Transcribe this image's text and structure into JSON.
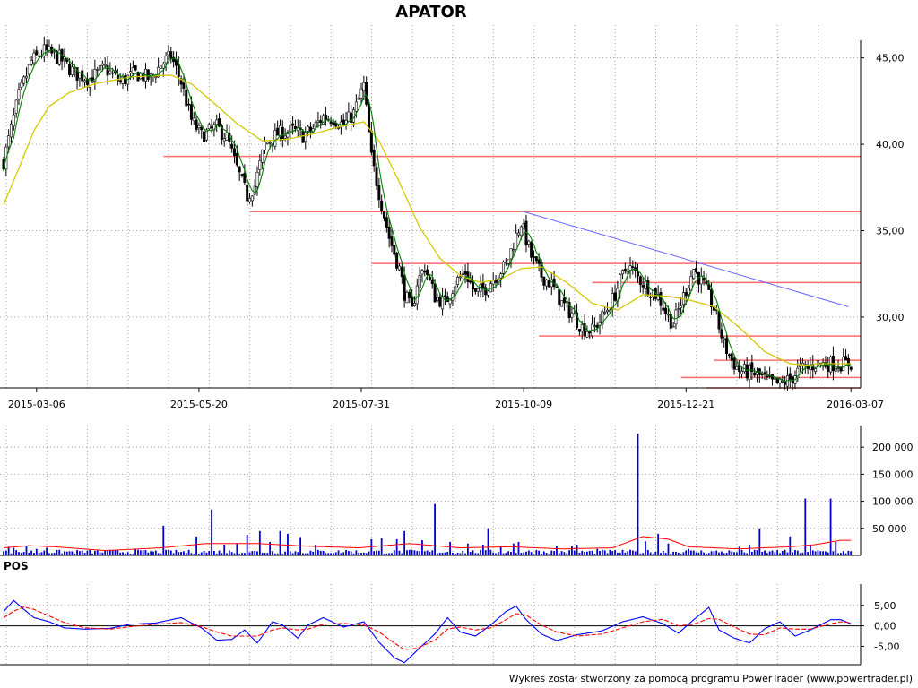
{
  "chart_data": [
    {
      "type": "candlestick",
      "title": "APATOR",
      "x_tick_labels": [
        "2015-03-06",
        "2015-05-20",
        "2015-07-31",
        "2015-10-09",
        "2015-12-21",
        "2016-03-07"
      ],
      "y_tick_labels": [
        "45,00",
        "40,00",
        "35,00",
        "30,00"
      ],
      "y_ticks": [
        45,
        40,
        35,
        30
      ],
      "ylim": [
        25.9,
        46.9
      ],
      "grid": true,
      "price_profile": [
        [
          0,
          39.0
        ],
        [
          6,
          42.8
        ],
        [
          11,
          44.8
        ],
        [
          16,
          45.4
        ],
        [
          22,
          45.0
        ],
        [
          28,
          44.1
        ],
        [
          34,
          43.8
        ],
        [
          40,
          44.4
        ],
        [
          46,
          43.6
        ],
        [
          52,
          44.1
        ],
        [
          58,
          43.8
        ],
        [
          62,
          44.6
        ],
        [
          66,
          45.1
        ],
        [
          70,
          43.6
        ],
        [
          74,
          41.4
        ],
        [
          78,
          40.5
        ],
        [
          84,
          41.0
        ],
        [
          88,
          40.4
        ],
        [
          92,
          38.6
        ],
        [
          96,
          37.0
        ],
        [
          99,
          37.6
        ],
        [
          103,
          40.0
        ],
        [
          108,
          40.6
        ],
        [
          114,
          40.8
        ],
        [
          118,
          40.5
        ],
        [
          122,
          40.9
        ],
        [
          126,
          41.6
        ],
        [
          130,
          41.5
        ],
        [
          134,
          41.1
        ],
        [
          138,
          41.8
        ],
        [
          142,
          43.4
        ],
        [
          145,
          39.2
        ],
        [
          148,
          37.2
        ],
        [
          152,
          34.6
        ],
        [
          156,
          32.8
        ],
        [
          158,
          31.4
        ],
        [
          161,
          30.3
        ],
        [
          163,
          32.0
        ],
        [
          166,
          32.9
        ],
        [
          170,
          31.2
        ],
        [
          174,
          30.8
        ],
        [
          178,
          32.0
        ],
        [
          182,
          32.6
        ],
        [
          186,
          31.3
        ],
        [
          190,
          31.7
        ],
        [
          194,
          32.4
        ],
        [
          198,
          33.0
        ],
        [
          202,
          34.7
        ],
        [
          204,
          35.5
        ],
        [
          208,
          33.5
        ],
        [
          212,
          32.4
        ],
        [
          216,
          31.9
        ],
        [
          220,
          30.8
        ],
        [
          224,
          30.2
        ],
        [
          228,
          29.4
        ],
        [
          232,
          29.2
        ],
        [
          236,
          30.0
        ],
        [
          240,
          31.0
        ],
        [
          244,
          32.4
        ],
        [
          246,
          33.0
        ],
        [
          250,
          32.3
        ],
        [
          254,
          31.7
        ],
        [
          258,
          31.2
        ],
        [
          262,
          30.0
        ],
        [
          264,
          29.6
        ],
        [
          268,
          31.2
        ],
        [
          272,
          32.8
        ],
        [
          276,
          31.8
        ],
        [
          280,
          30.5
        ],
        [
          284,
          28.4
        ],
        [
          287,
          27.5
        ],
        [
          290,
          26.9
        ],
        [
          294,
          26.8
        ],
        [
          298,
          26.6
        ],
        [
          302,
          26.2
        ],
        [
          306,
          26.1
        ],
        [
          310,
          26.4
        ],
        [
          314,
          27.0
        ],
        [
          317,
          27.0
        ],
        [
          320,
          27.3
        ]
      ],
      "sma_profile": [
        [
          0,
          36.5
        ],
        [
          6,
          38.6
        ],
        [
          12,
          40.8
        ],
        [
          18,
          42.2
        ],
        [
          26,
          43.0
        ],
        [
          36,
          43.5
        ],
        [
          50,
          43.9
        ],
        [
          66,
          44.0
        ],
        [
          74,
          43.5
        ],
        [
          82,
          42.5
        ],
        [
          92,
          41.2
        ],
        [
          102,
          40.2
        ],
        [
          112,
          40.3
        ],
        [
          122,
          40.6
        ],
        [
          132,
          41.0
        ],
        [
          142,
          41.3
        ],
        [
          148,
          40.2
        ],
        [
          156,
          37.8
        ],
        [
          164,
          35.2
        ],
        [
          172,
          33.4
        ],
        [
          180,
          32.4
        ],
        [
          188,
          32.0
        ],
        [
          196,
          32.2
        ],
        [
          204,
          32.8
        ],
        [
          212,
          32.9
        ],
        [
          222,
          32.0
        ],
        [
          232,
          30.8
        ],
        [
          242,
          30.4
        ],
        [
          252,
          31.3
        ],
        [
          262,
          31.2
        ],
        [
          270,
          31.0
        ],
        [
          280,
          30.6
        ],
        [
          290,
          29.4
        ],
        [
          300,
          28.0
        ],
        [
          310,
          27.3
        ],
        [
          318,
          27.2
        ],
        [
          320,
          27.3
        ]
      ],
      "horizontal_levels": [
        {
          "price": 39.3,
          "from": 63
        },
        {
          "price": 36.1,
          "from": 97
        },
        {
          "price": 33.1,
          "from": 145
        },
        {
          "price": 32.0,
          "from": 232
        },
        {
          "price": 28.9,
          "from": 211
        },
        {
          "price": 27.5,
          "from": 280
        },
        {
          "price": 26.5,
          "from": 267
        },
        {
          "price": 25.9,
          "from": 277
        }
      ],
      "trendline": {
        "from": [
          205,
          36.1
        ],
        "to": [
          333,
          30.6
        ]
      }
    },
    {
      "type": "bar",
      "title": "",
      "y_tick_labels": [
        "200 000",
        "150 000",
        "100 000",
        "50 000"
      ],
      "y_ticks": [
        200000,
        150000,
        100000,
        50000
      ],
      "ylim": [
        0,
        240000
      ],
      "spikes": [
        [
          2,
          16000
        ],
        [
          4,
          14000
        ],
        [
          9,
          18000
        ],
        [
          13,
          12000
        ],
        [
          16,
          9000
        ],
        [
          17,
          14000
        ],
        [
          30,
          8000
        ],
        [
          40,
          9000
        ],
        [
          52,
          12000
        ],
        [
          63,
          55000
        ],
        [
          76,
          35000
        ],
        [
          82,
          85000
        ],
        [
          87,
          20000
        ],
        [
          92,
          22000
        ],
        [
          96,
          38000
        ],
        [
          101,
          45000
        ],
        [
          105,
          25000
        ],
        [
          109,
          45000
        ],
        [
          112,
          40000
        ],
        [
          117,
          34000
        ],
        [
          123,
          20000
        ],
        [
          135,
          10000
        ],
        [
          145,
          30000
        ],
        [
          149,
          32000
        ],
        [
          155,
          30000
        ],
        [
          158,
          45000
        ],
        [
          165,
          28000
        ],
        [
          170,
          95000
        ],
        [
          176,
          25000
        ],
        [
          183,
          22000
        ],
        [
          189,
          20000
        ],
        [
          191,
          50000
        ],
        [
          196,
          16000
        ],
        [
          201,
          22000
        ],
        [
          203,
          25000
        ],
        [
          210,
          10000
        ],
        [
          218,
          18000
        ],
        [
          224,
          18000
        ],
        [
          226,
          20000
        ],
        [
          234,
          12000
        ],
        [
          250,
          225000
        ],
        [
          253,
          26000
        ],
        [
          258,
          40000
        ],
        [
          262,
          22000
        ],
        [
          270,
          12000
        ],
        [
          290,
          16000
        ],
        [
          294,
          20000
        ],
        [
          298,
          50000
        ],
        [
          305,
          10000
        ],
        [
          310,
          35000
        ],
        [
          316,
          105000
        ],
        [
          318,
          20000
        ],
        [
          326,
          105000
        ],
        [
          328,
          25000
        ]
      ],
      "baseline_volume": 7000,
      "volume_avg_profile": [
        [
          0,
          14000
        ],
        [
          10,
          18000
        ],
        [
          20,
          16000
        ],
        [
          40,
          9000
        ],
        [
          62,
          14000
        ],
        [
          80,
          22000
        ],
        [
          100,
          22000
        ],
        [
          120,
          17000
        ],
        [
          140,
          14000
        ],
        [
          160,
          22000
        ],
        [
          180,
          14000
        ],
        [
          200,
          16000
        ],
        [
          220,
          12000
        ],
        [
          240,
          14000
        ],
        [
          252,
          35000
        ],
        [
          262,
          30000
        ],
        [
          270,
          16000
        ],
        [
          290,
          12000
        ],
        [
          310,
          16000
        ],
        [
          320,
          20000
        ],
        [
          330,
          28000
        ]
      ]
    },
    {
      "type": "line",
      "title": "POS",
      "y_tick_labels": [
        "5,00",
        "0,00",
        "-5,00"
      ],
      "y_ticks": [
        5,
        0,
        -5
      ],
      "ylim": [
        -9.5,
        10.2
      ],
      "series": [
        {
          "color": "#0000ff",
          "values": [
            [
              0,
              3.5
            ],
            [
              4,
              6.2
            ],
            [
              8,
              4.0
            ],
            [
              12,
              2.0
            ],
            [
              18,
              1.0
            ],
            [
              24,
              -0.5
            ],
            [
              32,
              -0.8
            ],
            [
              42,
              -0.6
            ],
            [
              50,
              0.4
            ],
            [
              60,
              0.7
            ],
            [
              70,
              2.0
            ],
            [
              78,
              -0.5
            ],
            [
              84,
              -3.5
            ],
            [
              90,
              -3.3
            ],
            [
              95,
              -1.0
            ],
            [
              100,
              -4.2
            ],
            [
              106,
              1.0
            ],
            [
              110,
              0.2
            ],
            [
              116,
              -3.0
            ],
            [
              120,
              0.2
            ],
            [
              126,
              2.0
            ],
            [
              134,
              -0.3
            ],
            [
              142,
              1.0
            ],
            [
              148,
              -4.0
            ],
            [
              154,
              -7.8
            ],
            [
              158,
              -9.0
            ],
            [
              163,
              -6.0
            ],
            [
              170,
              -2.0
            ],
            [
              175,
              2.0
            ],
            [
              180,
              -1.5
            ],
            [
              186,
              -2.5
            ],
            [
              192,
              0.2
            ],
            [
              198,
              3.5
            ],
            [
              202,
              4.8
            ],
            [
              206,
              1.5
            ],
            [
              212,
              -2.0
            ],
            [
              218,
              -3.6
            ],
            [
              226,
              -2.2
            ],
            [
              236,
              -1.2
            ],
            [
              244,
              1.0
            ],
            [
              252,
              2.2
            ],
            [
              260,
              0.5
            ],
            [
              266,
              -1.8
            ],
            [
              272,
              1.5
            ],
            [
              278,
              4.5
            ],
            [
              282,
              -1.0
            ],
            [
              288,
              -3.0
            ],
            [
              294,
              -4.2
            ],
            [
              300,
              -0.7
            ],
            [
              306,
              1.0
            ],
            [
              312,
              -2.5
            ],
            [
              318,
              -1.0
            ],
            [
              326,
              1.5
            ],
            [
              330,
              1.5
            ],
            [
              334,
              0.5
            ]
          ]
        },
        {
          "color": "#ff0000",
          "values": [
            [
              0,
              2.0
            ],
            [
              4,
              3.6
            ],
            [
              8,
              4.6
            ],
            [
              12,
              4.0
            ],
            [
              18,
              2.4
            ],
            [
              24,
              0.8
            ],
            [
              32,
              -0.5
            ],
            [
              42,
              -0.8
            ],
            [
              50,
              -0.2
            ],
            [
              60,
              0.4
            ],
            [
              70,
              0.8
            ],
            [
              78,
              -0.2
            ],
            [
              84,
              -1.5
            ],
            [
              90,
              -2.5
            ],
            [
              95,
              -2.5
            ],
            [
              100,
              -2.5
            ],
            [
              106,
              -1.0
            ],
            [
              110,
              -0.5
            ],
            [
              116,
              -1.0
            ],
            [
              120,
              -0.8
            ],
            [
              126,
              0.4
            ],
            [
              134,
              0.6
            ],
            [
              142,
              0.2
            ],
            [
              148,
              -1.5
            ],
            [
              154,
              -4.2
            ],
            [
              158,
              -5.8
            ],
            [
              163,
              -5.5
            ],
            [
              170,
              -3.5
            ],
            [
              175,
              -0.8
            ],
            [
              180,
              -0.3
            ],
            [
              186,
              -1.0
            ],
            [
              192,
              -0.5
            ],
            [
              198,
              1.5
            ],
            [
              202,
              3.0
            ],
            [
              206,
              2.6
            ],
            [
              212,
              0.2
            ],
            [
              218,
              -1.5
            ],
            [
              226,
              -2.5
            ],
            [
              236,
              -2.0
            ],
            [
              244,
              -0.5
            ],
            [
              252,
              1.0
            ],
            [
              260,
              1.6
            ],
            [
              266,
              0.0
            ],
            [
              272,
              0.4
            ],
            [
              278,
              1.8
            ],
            [
              282,
              1.6
            ],
            [
              288,
              -0.3
            ],
            [
              294,
              -2.0
            ],
            [
              300,
              -2.2
            ],
            [
              306,
              -0.5
            ],
            [
              312,
              -0.8
            ],
            [
              318,
              -0.8
            ],
            [
              326,
              0.5
            ],
            [
              330,
              1.0
            ],
            [
              334,
              0.8
            ]
          ]
        }
      ]
    }
  ],
  "footer": {
    "text": "Wykres został stworzony za pomocą programu PowerTrader (www.powertrader.pl)"
  },
  "colors": {
    "bull": "#ffffff",
    "bear": "#000000",
    "sma_short": "#008000",
    "sma_long": "#d6c800",
    "support": "#ff6b6b",
    "trend": "#6464ff",
    "volume": "#0000cc",
    "grid": "#a0a0a0"
  }
}
